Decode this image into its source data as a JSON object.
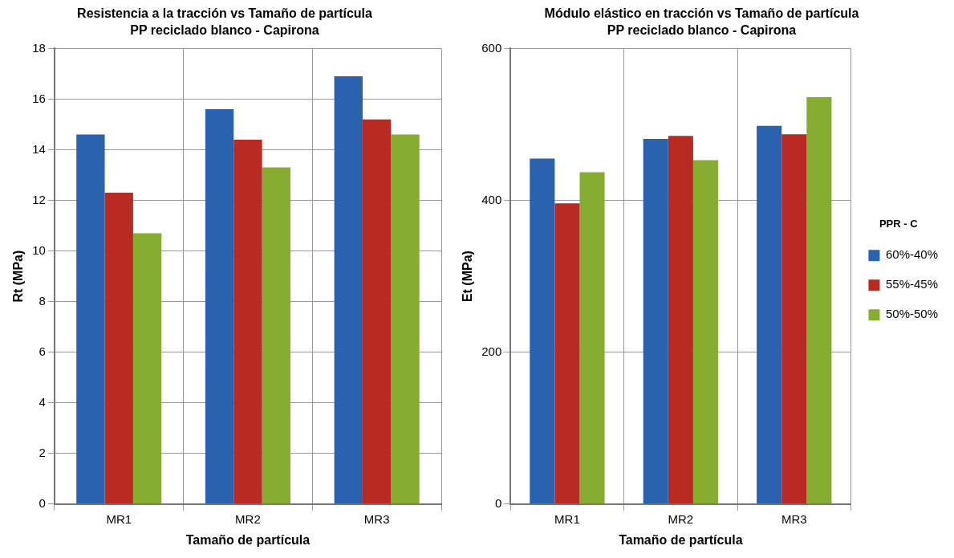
{
  "chart_data": [
    {
      "type": "bar",
      "title": "Resistencia a la tracción vs Tamaño de partícula",
      "subtitle": "PP reciclado blanco - Capirona",
      "xlabel": "Tamaño de partícula",
      "ylabel": "Rt (MPa)",
      "categories": [
        "MR1",
        "MR2",
        "MR3"
      ],
      "series": [
        {
          "color": "#2a62b0",
          "values": [
            14.6,
            15.6,
            16.9
          ]
        },
        {
          "color": "#b92a23",
          "values": [
            12.3,
            14.4,
            15.2
          ]
        },
        {
          "color": "#86ad2f",
          "values": [
            10.7,
            13.3,
            14.6
          ]
        }
      ],
      "ylim": [
        0,
        18
      ],
      "yticks": [
        0,
        2,
        4,
        6,
        8,
        10,
        12,
        14,
        16,
        18
      ],
      "grid": true
    },
    {
      "type": "bar",
      "title": "Módulo elástico en tracción vs Tamaño de partícula",
      "subtitle": "PP reciclado blanco - Capirona",
      "xlabel": "Tamaño de partícula",
      "ylabel": "Et (MPa)",
      "legend_title": "PPR - C",
      "categories": [
        "MR1",
        "MR2",
        "MR3"
      ],
      "series": [
        {
          "name": "60%-40%",
          "color": "#2a62b0",
          "values": [
            455,
            481,
            498
          ]
        },
        {
          "name": "55%-45%",
          "color": "#b92a23",
          "values": [
            396,
            485,
            487
          ]
        },
        {
          "name": "50%-50%",
          "color": "#86ad2f",
          "values": [
            437,
            453,
            536
          ]
        }
      ],
      "ylim": [
        0,
        600
      ],
      "yticks": [
        0,
        200,
        400,
        600
      ],
      "grid": true,
      "legend": "right"
    }
  ]
}
